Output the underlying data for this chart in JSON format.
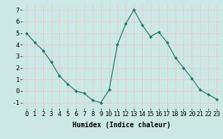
{
  "x": [
    0,
    1,
    2,
    3,
    4,
    5,
    6,
    7,
    8,
    9,
    10,
    11,
    12,
    13,
    14,
    15,
    16,
    17,
    18,
    19,
    20,
    21,
    22,
    23
  ],
  "y": [
    5.0,
    4.2,
    3.5,
    2.5,
    1.3,
    0.6,
    0.0,
    -0.2,
    -0.8,
    -1.0,
    0.1,
    4.0,
    5.8,
    7.0,
    5.7,
    4.7,
    5.1,
    4.2,
    2.9,
    2.0,
    1.1,
    0.1,
    -0.3,
    -0.7
  ],
  "xlabel": "Humidex (Indice chaleur)",
  "xlim": [
    -0.5,
    23.5
  ],
  "ylim": [
    -1.5,
    7.5
  ],
  "yticks": [
    -1,
    0,
    1,
    2,
    3,
    4,
    5,
    6,
    7
  ],
  "xticks": [
    0,
    1,
    2,
    3,
    4,
    5,
    6,
    7,
    8,
    9,
    10,
    11,
    12,
    13,
    14,
    15,
    16,
    17,
    18,
    19,
    20,
    21,
    22,
    23
  ],
  "line_color": "#1a7a6e",
  "marker_color": "#1a7a6e",
  "bg_color": "#cce8e4",
  "grid_color": "#f0f0f0",
  "xlabel_fontsize": 7,
  "tick_fontsize": 6.5
}
